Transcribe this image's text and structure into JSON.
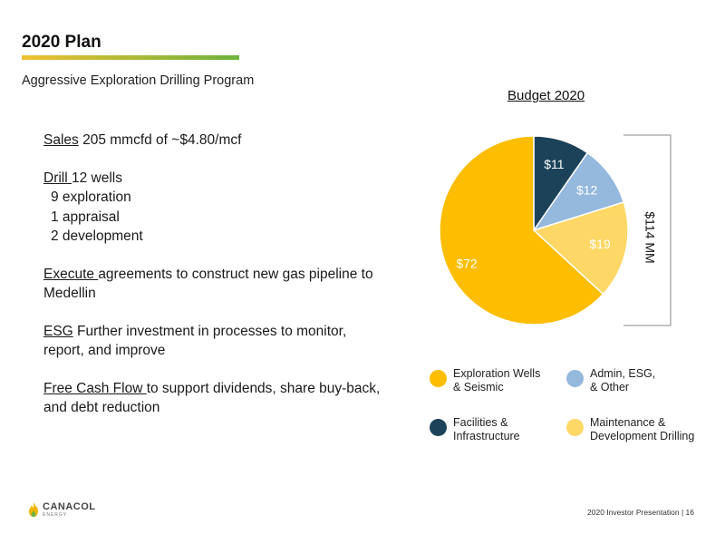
{
  "slide": {
    "title": "2020 Plan",
    "subtitle": "Aggressive Exploration Drilling Program",
    "accent_gradient": [
      "#F0C030",
      "#6DB33F"
    ]
  },
  "plan": {
    "sales": {
      "keyword": "Sales",
      "text": " 205 mmcfd of ~$4.80/mcf"
    },
    "drill": {
      "keyword": "Drill ",
      "text": "12 wells",
      "items": [
        "9 exploration",
        "1 appraisal",
        "2 development"
      ]
    },
    "execute": {
      "keyword": "Execute ",
      "text": "agreements to construct new gas pipeline to",
      "text2": "Medellin"
    },
    "esg": {
      "keyword": "ESG",
      "text": " Further investment in processes to monitor,",
      "text2": "report, and improve"
    },
    "fcf": {
      "keyword": "Free Cash Flow ",
      "text": "to support dividends, share buy-back,",
      "text2": "and debt reduction"
    }
  },
  "chart_data": {
    "type": "pie",
    "title": "Budget 2020",
    "total_label": "$114 MM",
    "categories": [
      "Facilities & Infrastructure",
      "Admin, ESG, & Other",
      "Maintenance & Development Drilling",
      "Exploration Wells & Seismic"
    ],
    "values": [
      11,
      12,
      19,
      72
    ],
    "data_labels": [
      "$11",
      "$12",
      "$19",
      "$72"
    ],
    "colors": [
      "#1B4259",
      "#95B8DD",
      "#FDD866",
      "#FDBD00"
    ],
    "legend": [
      {
        "line1": "Exploration Wells",
        "line2": "& Seismic",
        "color": "#FDBD00"
      },
      {
        "line1": "Admin, ESG,",
        "line2": "& Other",
        "color": "#95B8DD"
      },
      {
        "line1": "Facilities &",
        "line2": "Infrastructure",
        "color": "#1B4259"
      },
      {
        "line1": "Maintenance &",
        "line2": "Development Drilling",
        "color": "#FDD866"
      }
    ]
  },
  "footer": {
    "logo_text": "CANACOL",
    "logo_sub": "ENERGY",
    "presentation": "2020 Investor Presentation | 16"
  }
}
